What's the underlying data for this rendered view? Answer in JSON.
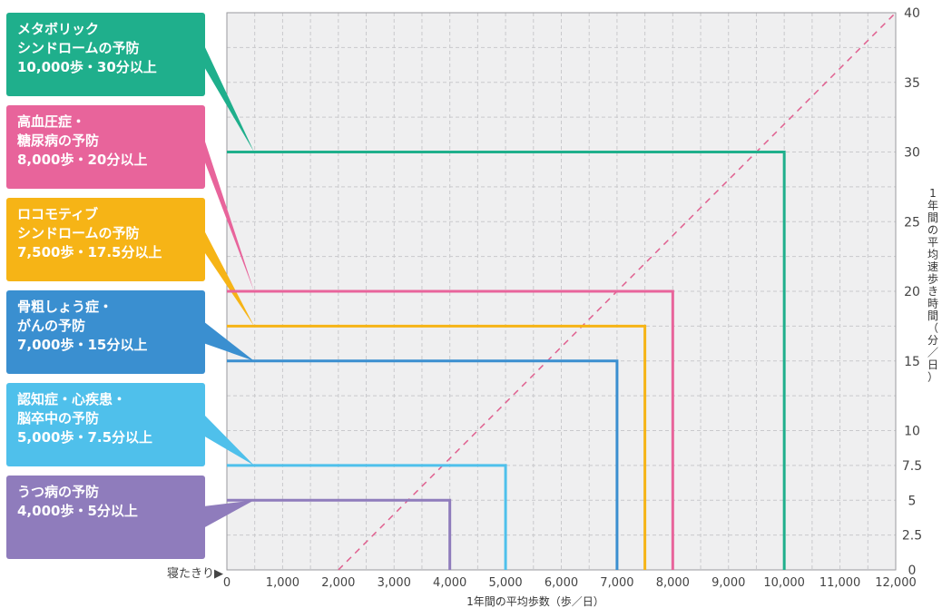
{
  "chart_data": {
    "type": "line",
    "xlabel": "1年間の平均歩数（歩／日）",
    "ylabel": [
      "1",
      "年",
      "間",
      "の",
      "平",
      "均",
      "速",
      "歩",
      "き",
      "時",
      "間",
      "（",
      "分",
      "／",
      "日",
      "）"
    ],
    "xlim": [
      0,
      12000
    ],
    "ylim": [
      0,
      40
    ],
    "x_ticks": [
      0,
      1000,
      2000,
      3000,
      4000,
      5000,
      6000,
      7000,
      8000,
      9000,
      10000,
      11000,
      12000
    ],
    "x_tick_labels": [
      "0",
      "1,000",
      "2,000",
      "3,000",
      "4,000",
      "5,000",
      "6,000",
      "7,000",
      "8,000",
      "9,000",
      "10,000",
      "11,000",
      "12,000"
    ],
    "y_ticks": [
      0,
      2.5,
      5,
      7.5,
      10,
      15,
      20,
      25,
      30,
      35,
      40
    ],
    "y_tick_labels": [
      "0",
      "2.5",
      "5",
      "7.5",
      "10",
      "15",
      "20",
      "25",
      "30",
      "35",
      "40"
    ],
    "grid": true,
    "baseline_label": "寝たきり▶",
    "diagonal": {
      "from": [
        2000,
        0
      ],
      "to": [
        12000,
        40
      ],
      "style": "dashed",
      "color": "#e0608f"
    },
    "series": [
      {
        "steps": 10000,
        "minutes": 30,
        "color": "#1faf8c",
        "label": [
          "メタボリック",
          "シンドロームの予防",
          "10,000歩・30分以上"
        ]
      },
      {
        "steps": 8000,
        "minutes": 20,
        "color": "#e8649b",
        "label": [
          "高血圧症・",
          "糖尿病の予防",
          "8,000歩・20分以上"
        ]
      },
      {
        "steps": 7500,
        "minutes": 17.5,
        "color": "#f6b416",
        "label": [
          "ロコモティブ",
          "シンドロームの予防",
          "7,500歩・17.5分以上"
        ]
      },
      {
        "steps": 7000,
        "minutes": 15,
        "color": "#3a8fd0",
        "label": [
          "骨粗しょう症・",
          "がんの予防",
          "7,000歩・15分以上"
        ]
      },
      {
        "steps": 5000,
        "minutes": 7.5,
        "color": "#4fc0eb",
        "label": [
          "認知症・心疾患・",
          "脳卒中の予防",
          "5,000歩・7.5分以上"
        ]
      },
      {
        "steps": 4000,
        "minutes": 5,
        "color": "#8f7cbc",
        "label": [
          "うつ病の予防",
          "4,000歩・5分以上"
        ]
      }
    ]
  }
}
